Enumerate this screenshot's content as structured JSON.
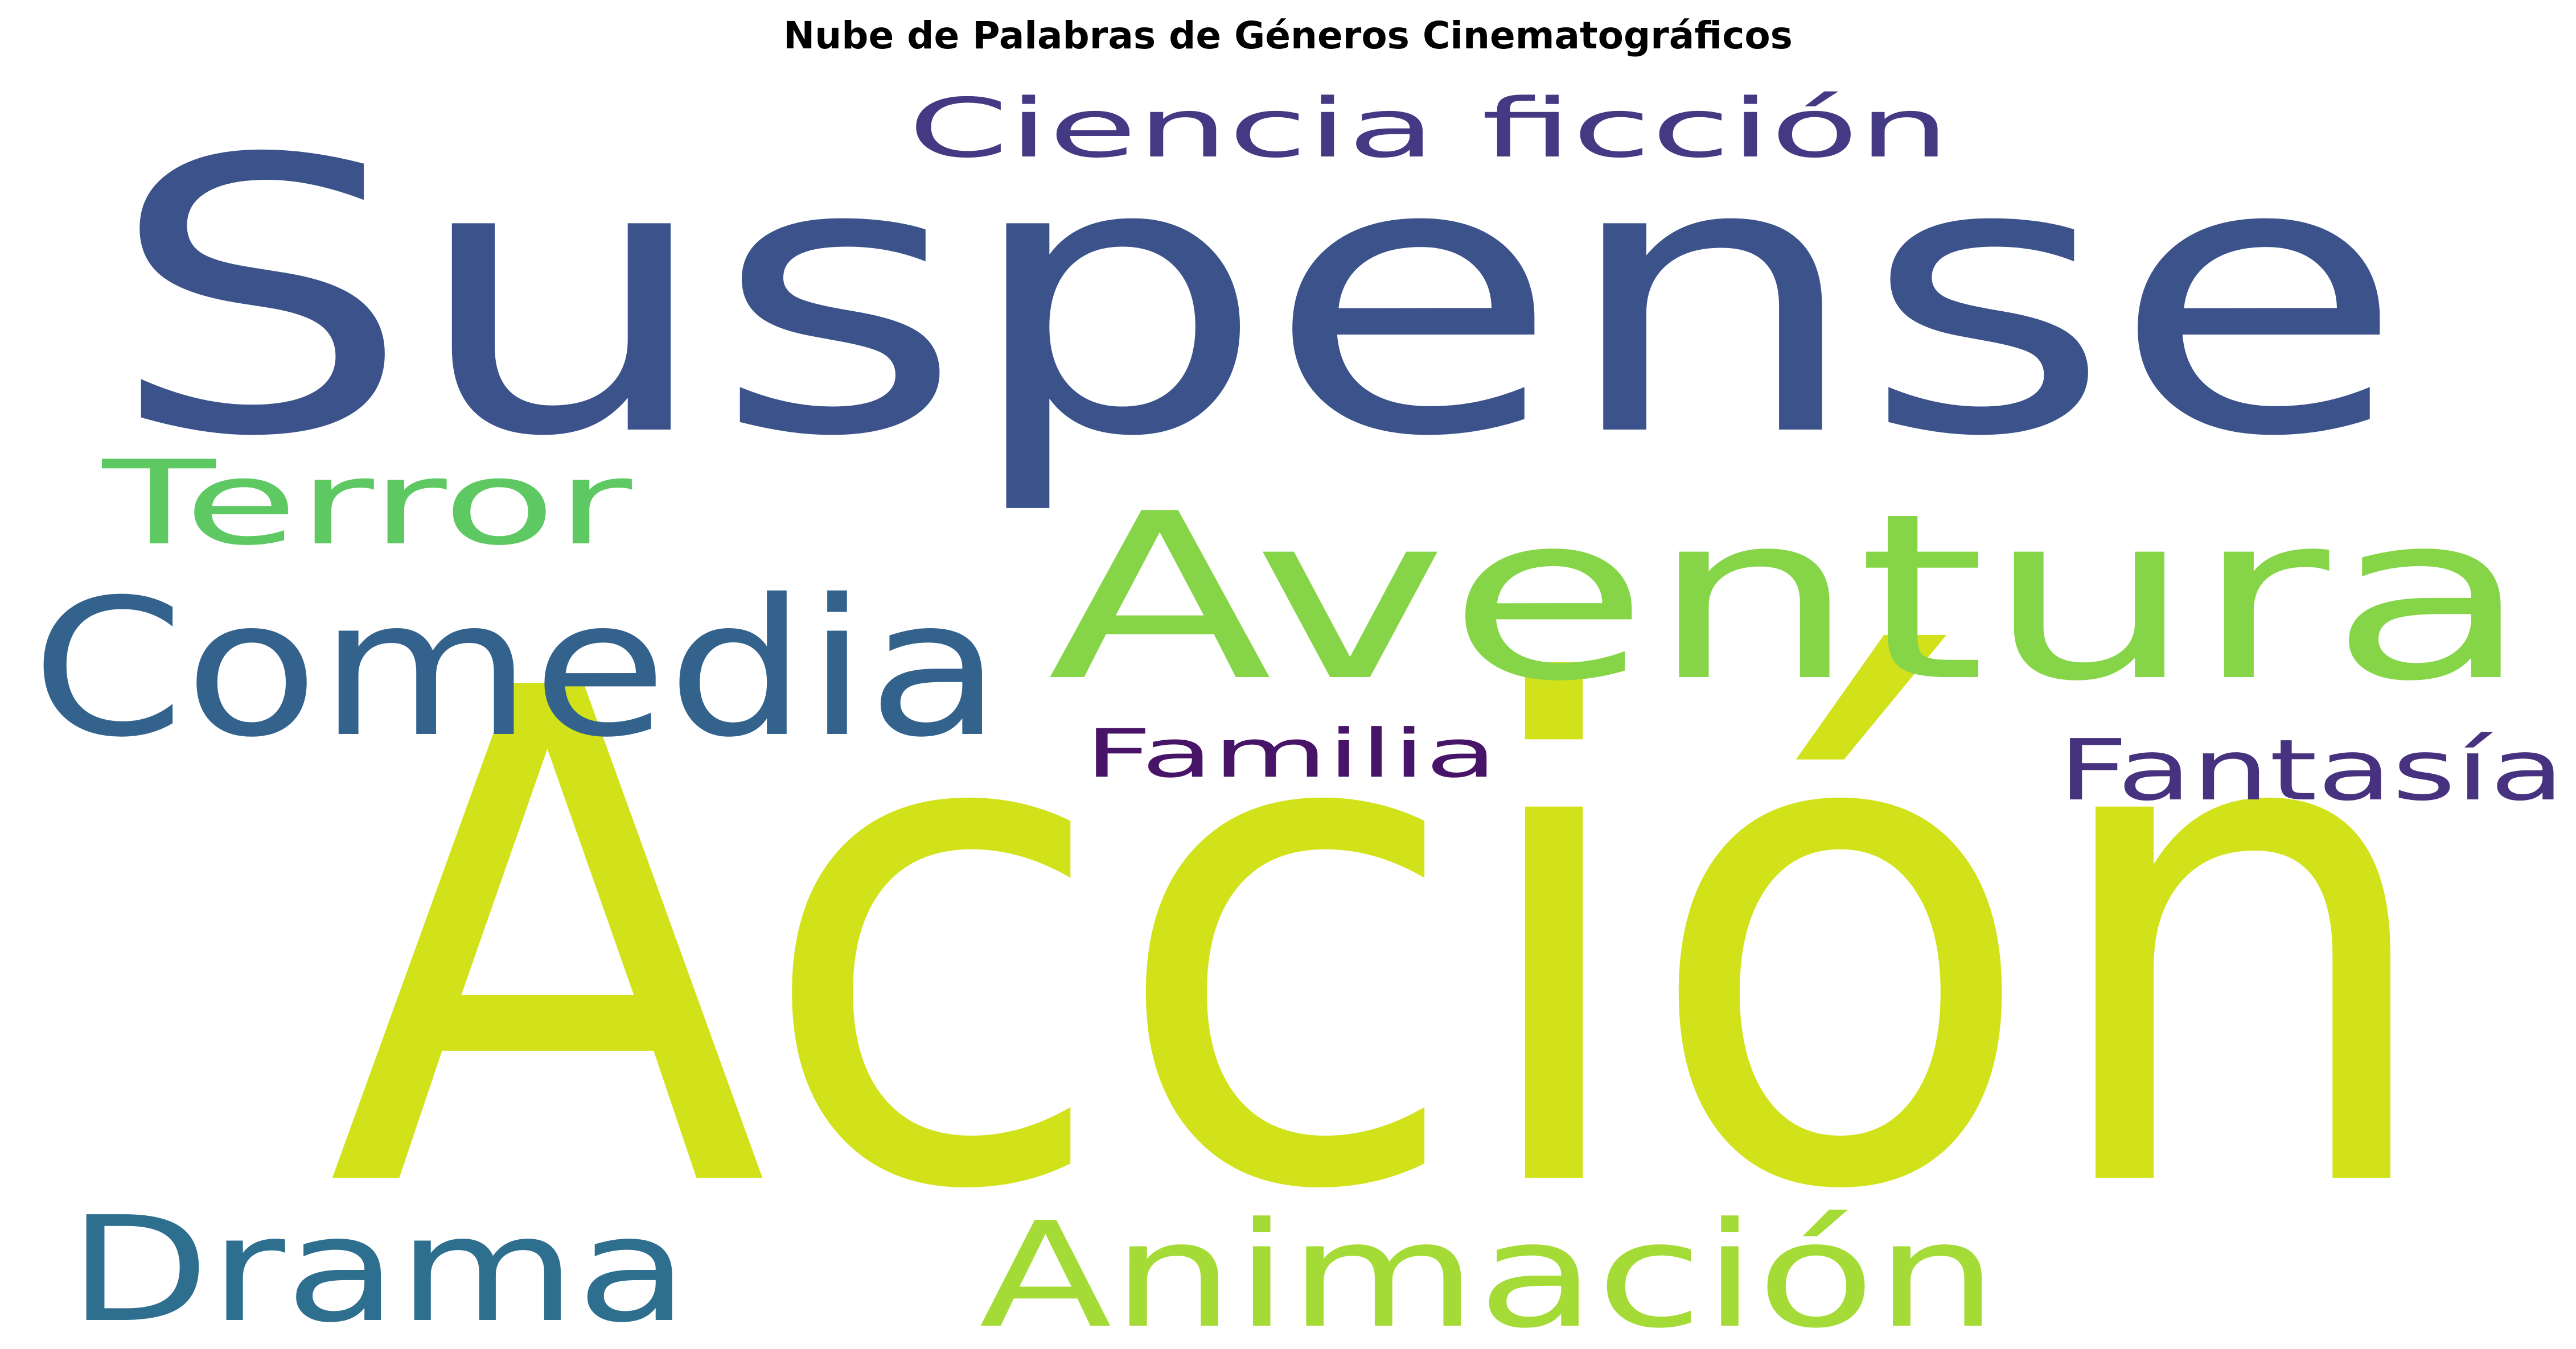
{
  "chart_data": {
    "type": "wordcloud",
    "title": "Nube de Palabras de Géneros Cinematográficos",
    "words": [
      {
        "text": "Acción",
        "color": "#d1e21b"
      },
      {
        "text": "Suspense",
        "color": "#3b528b"
      },
      {
        "text": "Aventura",
        "color": "#86d549"
      },
      {
        "text": "Comedia",
        "color": "#33638d"
      },
      {
        "text": "Drama",
        "color": "#2e6e8e"
      },
      {
        "text": "Animación",
        "color": "#a5db36"
      },
      {
        "text": "Terror",
        "color": "#5ec962"
      },
      {
        "text": "Ciencia ficción",
        "color": "#443983"
      },
      {
        "text": "Fantasía",
        "color": "#46327e"
      },
      {
        "text": "Familia",
        "color": "#481467"
      }
    ]
  }
}
